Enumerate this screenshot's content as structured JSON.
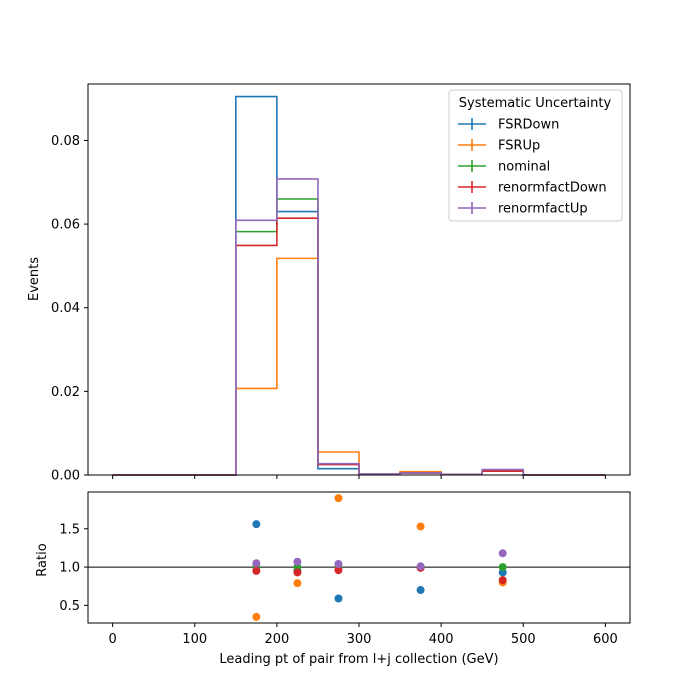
{
  "chart_data": {
    "type": "step-histogram-with-ratio",
    "x_label": "Leading pt of pair from l+j collection (GeV)",
    "xlim": [
      -30,
      630
    ],
    "x_ticks": [
      0,
      100,
      200,
      300,
      400,
      500,
      600
    ],
    "bin_edges": [
      0,
      50,
      100,
      150,
      200,
      250,
      300,
      350,
      400,
      450,
      500,
      550,
      600
    ],
    "top": {
      "y_label": "Events",
      "ylim": [
        0,
        0.0935
      ],
      "y_ticks": [
        0.0,
        0.02,
        0.04,
        0.06,
        0.08
      ],
      "y_tick_labels": [
        "0.00",
        "0.02",
        "0.04",
        "0.06",
        "0.08"
      ]
    },
    "bottom": {
      "y_label": "Ratio",
      "ylim": [
        0.27,
        1.98
      ],
      "y_ticks": [
        0.5,
        1.0,
        1.5
      ],
      "y_tick_labels": [
        "0.5",
        "1.0",
        "1.5"
      ],
      "reference_line": 1.0,
      "ratio_x": [
        175,
        225,
        275,
        375,
        475
      ]
    },
    "legend": {
      "title": "Systematic Uncertainty",
      "placement": "upper right"
    },
    "series": [
      {
        "name": "FSRDown",
        "color": "#1f77b4",
        "values": [
          0,
          0,
          0,
          0.0905,
          0.063,
          0.0015,
          0.0002,
          0.0005,
          0.0001,
          0.001,
          0,
          0
        ],
        "ratio": [
          1.56,
          0.95,
          0.59,
          0.7,
          0.93
        ]
      },
      {
        "name": "FSRUp",
        "color": "#ff7f0e",
        "values": [
          0,
          0,
          0,
          0.0207,
          0.0518,
          0.0055,
          0.0002,
          0.0008,
          0.0001,
          0.0009,
          0,
          0
        ],
        "ratio": [
          0.35,
          0.79,
          1.9,
          1.53,
          0.8
        ]
      },
      {
        "name": "nominal",
        "color": "#2ca02c",
        "values": [
          0,
          0,
          0,
          0.0582,
          0.066,
          0.0026,
          0.0002,
          0.0005,
          0.0001,
          0.0011,
          0,
          0
        ],
        "ratio": [
          1.0,
          1.0,
          1.0,
          1.0,
          1.0
        ]
      },
      {
        "name": "renormfactDown",
        "color": "#d62728",
        "values": [
          0,
          0,
          0,
          0.0549,
          0.0614,
          0.0025,
          0.0002,
          0.0005,
          0.0001,
          0.0009,
          0,
          0
        ],
        "ratio": [
          0.95,
          0.93,
          0.96,
          0.99,
          0.83
        ]
      },
      {
        "name": "renormfactUp",
        "color": "#9467bd",
        "values": [
          0,
          0,
          0,
          0.0609,
          0.0708,
          0.0027,
          0.0002,
          0.0005,
          0.0001,
          0.0013,
          0,
          0
        ],
        "ratio": [
          1.05,
          1.07,
          1.04,
          1.01,
          1.18
        ]
      }
    ]
  }
}
